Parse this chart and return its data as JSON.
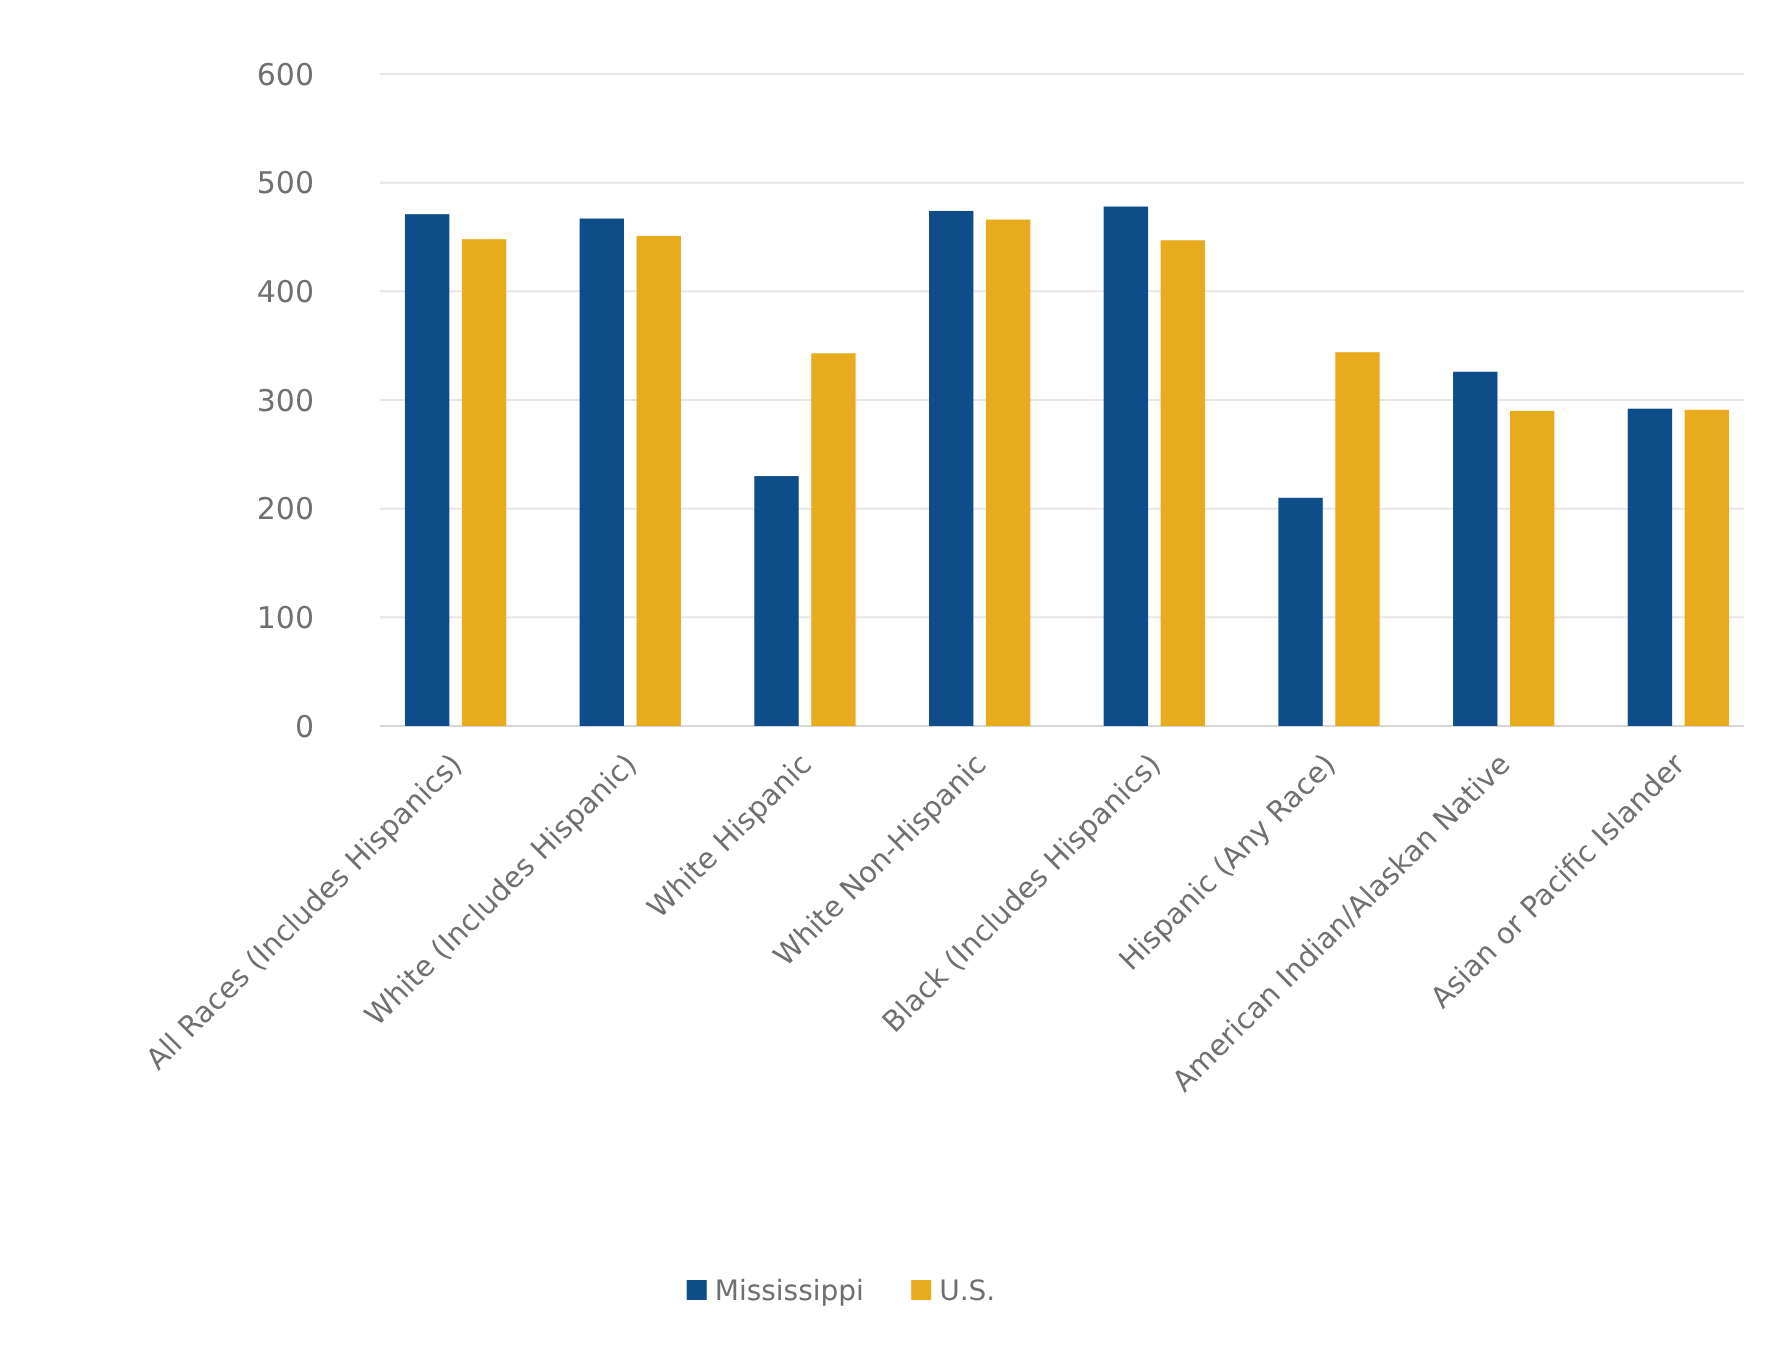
{
  "chart_data": {
    "type": "bar",
    "categories": [
      "All Races (Includes Hispanics)",
      "White (Includes Hispanic)",
      "White Hispanic",
      "White Non-Hispanic",
      "Black (Includes Hispanics)",
      "Hispanic (Any Race)",
      "American Indian/Alaskan Native",
      "Asian or Pacific Islander"
    ],
    "series": [
      {
        "name": "Mississippi",
        "color": "#0f4c8a",
        "values": [
          471,
          467,
          230,
          474,
          478,
          210,
          326,
          292
        ]
      },
      {
        "name": "U.S.",
        "color": "#e9ab1e",
        "values": [
          448,
          451,
          343,
          466,
          447,
          344,
          290,
          291
        ]
      }
    ],
    "ylim": [
      0,
      600
    ],
    "yticks": [
      0,
      100,
      200,
      300,
      400,
      500,
      600
    ],
    "grid": "y",
    "legend": "bottom"
  }
}
